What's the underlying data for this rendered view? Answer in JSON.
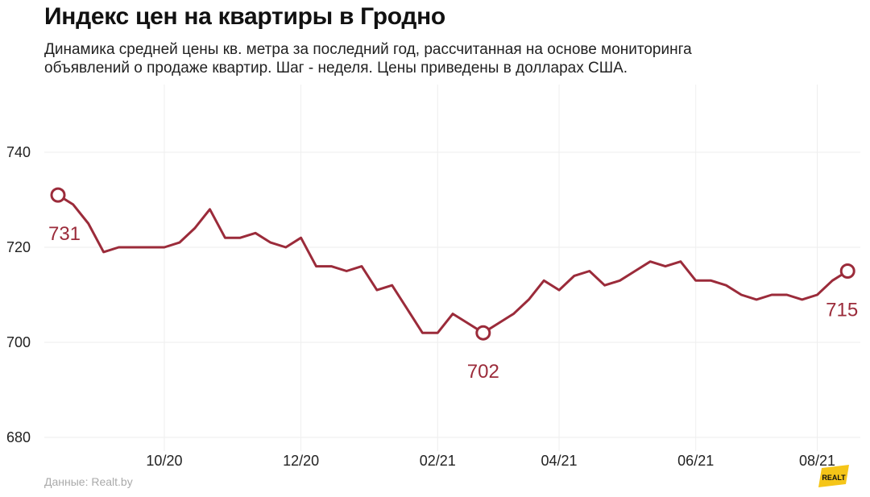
{
  "title": "Индекс цен на квартиры в Гродно",
  "subtitle_line1": "Динамика средней цены кв. метра за последний год, рассчитанная на основе мониторинга",
  "subtitle_line2": "объявлений о продаже квартир. Шаг - неделя. Цены приведены в долларах США.",
  "source": "Данные: Realt.by",
  "logo_text": "REALT",
  "colors": {
    "line": "#9b2b3a",
    "grid": "#eeeeee",
    "logo": "#f5c518"
  },
  "chart_data": {
    "type": "line",
    "title": "Индекс цен на квартиры в Гродно",
    "xlabel": "",
    "ylabel": "",
    "ylim": [
      680,
      750
    ],
    "y_ticks": [
      680,
      700,
      720,
      740
    ],
    "x_ticks": [
      "10/20",
      "12/20",
      "02/21",
      "04/21",
      "06/21",
      "08/21"
    ],
    "x_tick_week_index": [
      7,
      16,
      25,
      33,
      42,
      50
    ],
    "grid": true,
    "series": [
      {
        "values": [
          731,
          729,
          725,
          719,
          720,
          720,
          720,
          720,
          721,
          724,
          728,
          722,
          722,
          723,
          721,
          720,
          722,
          716,
          716,
          715,
          716,
          711,
          712,
          707,
          702,
          702,
          706,
          704,
          702,
          704,
          706,
          709,
          713,
          711,
          714,
          715,
          712,
          713,
          715,
          717,
          716,
          717,
          713,
          713,
          712,
          710,
          709,
          710,
          710,
          709,
          710,
          713,
          715
        ]
      }
    ],
    "annotations": [
      {
        "index": 0,
        "label": "731",
        "position": "below"
      },
      {
        "index": 28,
        "label": "702",
        "position": "below"
      },
      {
        "index": 52,
        "label": "715",
        "position": "below"
      }
    ]
  }
}
